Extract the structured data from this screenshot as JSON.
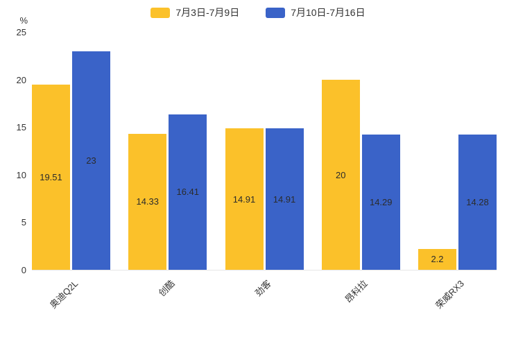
{
  "chart_data": {
    "type": "bar",
    "title": "",
    "ylabel": "%",
    "xlabel": "",
    "ylim": [
      0,
      25
    ],
    "yticks": [
      0,
      5,
      10,
      15,
      20,
      25
    ],
    "grid": false,
    "legend_position": "top",
    "categories": [
      "奥迪Q2L",
      "创酷",
      "劲客",
      "昂科拉",
      "荣威RX3"
    ],
    "series": [
      {
        "name": "7月3日-7月9日",
        "color": "#FBC12A",
        "values": [
          19.51,
          14.33,
          14.91,
          20,
          2.2
        ]
      },
      {
        "name": "7月10日-7月16日",
        "color": "#3A63C8",
        "values": [
          23,
          16.41,
          14.91,
          14.29,
          14.28
        ]
      }
    ]
  }
}
